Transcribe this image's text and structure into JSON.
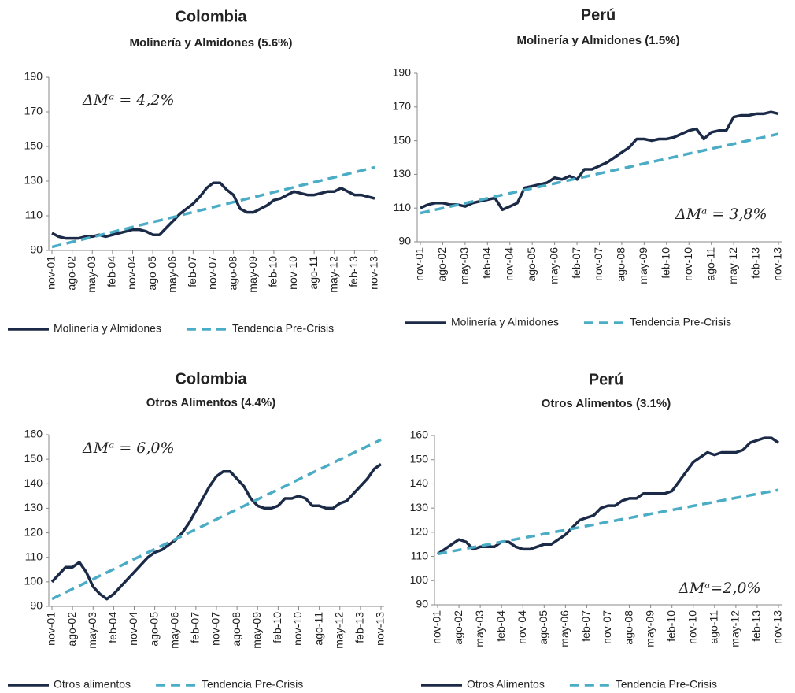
{
  "chart_data": [
    {
      "type": "line",
      "title": "Colombia",
      "subtitle": "Molinería y Almidones (5.6%)",
      "annotation": "ΔMᵃ = 4,2%",
      "categories": [
        "nov-01",
        null,
        null,
        "ago-02",
        null,
        null,
        "may-03",
        null,
        null,
        "feb-04",
        null,
        null,
        "nov-04",
        null,
        null,
        "ago-05",
        null,
        null,
        "may-06",
        null,
        null,
        "feb-07",
        null,
        null,
        "nov-07",
        null,
        null,
        "ago-08",
        null,
        null,
        "may-09",
        null,
        null,
        "feb-10",
        null,
        null,
        "nov-10",
        null,
        null,
        "ago-11",
        null,
        null,
        "may-12",
        null,
        null,
        "feb-13",
        null,
        null,
        "nov-13"
      ],
      "ylim": [
        90,
        190
      ],
      "yticks": [
        90,
        110,
        130,
        150,
        170,
        190
      ],
      "series": [
        {
          "name": "Molinería y Almidones",
          "color": "#1b2a47",
          "style": "solid",
          "values": [
            100,
            98,
            97,
            97,
            97,
            98,
            98,
            99,
            98,
            99,
            100,
            101,
            102,
            102,
            101,
            99,
            99,
            103,
            107,
            111,
            114,
            117,
            121,
            126,
            129,
            129,
            125,
            122,
            114,
            112,
            112,
            114,
            116,
            119,
            120,
            122,
            124,
            123,
            122,
            122,
            123,
            124,
            124,
            126,
            124,
            122,
            122,
            121,
            120
          ]
        },
        {
          "name": "Tendencia Pre-Crisis",
          "color": "#4bacc6",
          "style": "dashed",
          "values": [
            92.0,
            93.0,
            93.9,
            94.9,
            95.8,
            96.8,
            97.7,
            98.7,
            99.7,
            100.6,
            101.6,
            102.5,
            103.5,
            104.5,
            105.4,
            106.4,
            107.3,
            108.3,
            109.2,
            110.2,
            111.2,
            112.1,
            113.1,
            114.0,
            115.0,
            116.0,
            116.9,
            117.9,
            118.8,
            119.8,
            120.7,
            121.7,
            122.7,
            123.6,
            124.6,
            125.5,
            126.5,
            127.5,
            128.4,
            129.4,
            130.3,
            131.3,
            132.2,
            133.2,
            134.2,
            135.1,
            136.1,
            137.0,
            138.0
          ]
        }
      ]
    },
    {
      "type": "line",
      "title": "Perú",
      "subtitle": "Molinería y Almidones (1.5%)",
      "annotation": "ΔMᵃ = 3,8%",
      "categories": [
        "nov-01",
        null,
        null,
        "ago-02",
        null,
        null,
        "may-03",
        null,
        null,
        "feb-04",
        null,
        null,
        "nov-04",
        null,
        null,
        "ago-05",
        null,
        null,
        "may-06",
        null,
        null,
        "feb-07",
        null,
        null,
        "nov-07",
        null,
        null,
        "ago-08",
        null,
        null,
        "may-09",
        null,
        null,
        "feb-10",
        null,
        null,
        "nov-10",
        null,
        null,
        "ago-11",
        null,
        null,
        "may-12",
        null,
        null,
        "feb-13",
        null,
        null,
        "nov-13"
      ],
      "ylim": [
        90,
        190
      ],
      "yticks": [
        90,
        110,
        130,
        150,
        170,
        190
      ],
      "series": [
        {
          "name": "Molinería y Almidones",
          "color": "#1b2a47",
          "style": "solid",
          "values": [
            110,
            112,
            113,
            113,
            112,
            112,
            111,
            113,
            114,
            115,
            116,
            109,
            111,
            113,
            122,
            123,
            124,
            125,
            128,
            127,
            129,
            127,
            133,
            133,
            135,
            137,
            140,
            143,
            146,
            151,
            151,
            150,
            151,
            151,
            152,
            154,
            156,
            157,
            151,
            155,
            156,
            156,
            164,
            165,
            165,
            166,
            166,
            167,
            166
          ]
        },
        {
          "name": "Tendencia Pre-Crisis",
          "color": "#4bacc6",
          "style": "dashed",
          "values": [
            107.0,
            108.0,
            109.0,
            109.9,
            110.9,
            111.9,
            112.9,
            113.9,
            114.8,
            115.8,
            116.8,
            117.8,
            118.8,
            119.7,
            120.7,
            121.7,
            122.7,
            123.6,
            124.6,
            125.6,
            126.6,
            127.6,
            128.5,
            129.5,
            130.5,
            131.5,
            132.5,
            133.4,
            134.4,
            135.4,
            136.4,
            137.4,
            138.3,
            139.3,
            140.3,
            141.3,
            142.3,
            143.2,
            144.2,
            145.2,
            146.2,
            147.1,
            148.1,
            149.1,
            150.1,
            151.1,
            152.0,
            153.0,
            154.0
          ]
        }
      ]
    },
    {
      "type": "line",
      "title": "Colombia",
      "subtitle": "Otros Alimentos (4.4%)",
      "annotation": "ΔMᵃ = 6,0%",
      "categories": [
        "nov-01",
        null,
        null,
        "ago-02",
        null,
        null,
        "may-03",
        null,
        null,
        "feb-04",
        null,
        null,
        "nov-04",
        null,
        null,
        "ago-05",
        null,
        null,
        "may-06",
        null,
        null,
        "feb-07",
        null,
        null,
        "nov-07",
        null,
        null,
        "ago-08",
        null,
        null,
        "may-09",
        null,
        null,
        "feb-10",
        null,
        null,
        "nov-10",
        null,
        null,
        "ago-11",
        null,
        null,
        "may-12",
        null,
        null,
        "feb-13",
        null,
        null,
        "nov-13"
      ],
      "ylim": [
        90,
        160
      ],
      "yticks": [
        90,
        100,
        110,
        120,
        130,
        140,
        150,
        160
      ],
      "series": [
        {
          "name": "Otros alimentos",
          "color": "#1b2a47",
          "style": "solid",
          "values": [
            100,
            103,
            106,
            106,
            108,
            104,
            98,
            95,
            93,
            95,
            98,
            101,
            104,
            107,
            110,
            112,
            113,
            115,
            117,
            120,
            124,
            129,
            134,
            139,
            143,
            145,
            145,
            142,
            139,
            134,
            131,
            130,
            130,
            131,
            134,
            134,
            135,
            134,
            131,
            131,
            130,
            130,
            132,
            133,
            136,
            139,
            142,
            146,
            148
          ]
        },
        {
          "name": "Tendencia Pre-Crisis",
          "color": "#4bacc6",
          "style": "dashed",
          "values": [
            93.0,
            94.4,
            95.7,
            97.1,
            98.4,
            99.8,
            101.1,
            102.5,
            103.8,
            105.2,
            106.5,
            107.9,
            109.3,
            110.6,
            112.0,
            113.3,
            114.7,
            116.0,
            117.4,
            118.7,
            120.1,
            121.4,
            122.8,
            124.1,
            125.5,
            126.9,
            128.2,
            129.6,
            130.9,
            132.3,
            133.6,
            135.0,
            136.3,
            137.7,
            139.0,
            140.4,
            141.8,
            143.1,
            144.5,
            145.8,
            147.2,
            148.5,
            149.9,
            151.2,
            152.6,
            153.9,
            155.3,
            156.6,
            158.0
          ]
        }
      ]
    },
    {
      "type": "line",
      "title": "Perú",
      "subtitle": "Otros Alimentos (3.1%)",
      "annotation": "ΔMᵃ=2,0%",
      "categories": [
        "nov-01",
        null,
        null,
        "ago-02",
        null,
        null,
        "may-03",
        null,
        null,
        "feb-04",
        null,
        null,
        "nov-04",
        null,
        null,
        "ago-05",
        null,
        null,
        "may-06",
        null,
        null,
        "feb-07",
        null,
        null,
        "nov-07",
        null,
        null,
        "ago-08",
        null,
        null,
        "may-09",
        null,
        null,
        "feb-10",
        null,
        null,
        "nov-10",
        null,
        null,
        "ago-11",
        null,
        null,
        "may-12",
        null,
        null,
        "feb-13",
        null,
        null,
        "nov-13"
      ],
      "ylim": [
        90,
        160
      ],
      "yticks": [
        90,
        100,
        110,
        120,
        130,
        140,
        150,
        160
      ],
      "series": [
        {
          "name": "Otros Alimentos",
          "color": "#1b2a47",
          "style": "solid",
          "values": [
            111,
            113,
            115,
            117,
            116,
            113,
            114,
            114,
            114,
            116,
            116,
            114,
            113,
            113,
            114,
            115,
            115,
            117,
            119,
            122,
            125,
            126,
            127,
            130,
            131,
            131,
            133,
            134,
            134,
            136,
            136,
            136,
            136,
            137,
            141,
            145,
            149,
            151,
            153,
            152,
            153,
            153,
            153,
            154,
            157,
            158,
            159,
            159,
            157
          ]
        },
        {
          "name": "Tendencia Pre-Crisis",
          "color": "#4bacc6",
          "style": "dashed",
          "values": [
            111.0,
            111.6,
            112.1,
            112.7,
            113.2,
            113.8,
            114.3,
            114.9,
            115.4,
            116.0,
            116.5,
            117.1,
            117.6,
            118.2,
            118.7,
            119.3,
            119.8,
            120.4,
            120.9,
            121.5,
            122.0,
            122.6,
            123.1,
            123.7,
            124.3,
            124.8,
            125.4,
            125.9,
            126.5,
            127.0,
            127.6,
            128.1,
            128.7,
            129.2,
            129.8,
            130.3,
            130.9,
            131.4,
            132.0,
            132.5,
            133.1,
            133.6,
            134.2,
            134.7,
            135.3,
            135.8,
            136.4,
            136.9,
            137.5
          ]
        }
      ]
    }
  ]
}
